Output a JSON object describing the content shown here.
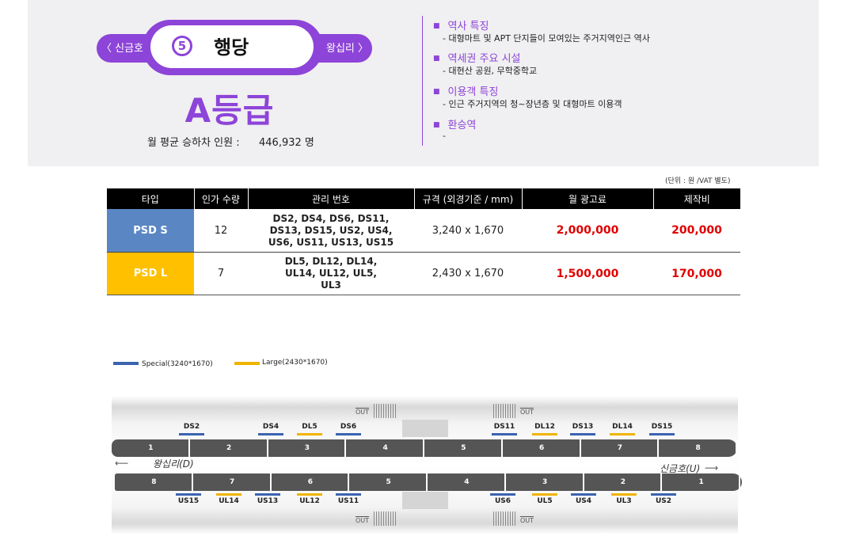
{
  "station": {
    "prev": "〈 신금호",
    "next": "왕십리 〉",
    "number": "5",
    "name": "행당",
    "grade": "A등급",
    "monthly_label": "월 평균 승하차 인원 :",
    "monthly_value": "446,932 명"
  },
  "features": [
    {
      "title": "역사 특징",
      "desc": "-  대형마트 및 APT 단지들이 모여있는 주거지역인근 역사"
    },
    {
      "title": "역세권 주요 시설",
      "desc": "-  대현산 공원, 무학중학교"
    },
    {
      "title": "이용객 특징",
      "desc": "-  인근 주거지역의 청~장년층 및 대형마트 이용객"
    },
    {
      "title": "환승역",
      "desc": "-"
    }
  ],
  "unit_note": "(단위 : 원 /VAT 별도)",
  "table": {
    "headers": [
      "타입",
      "인가 수량",
      "관리 번호",
      "규격 (외경기준 / mm)",
      "월 광고료",
      "제작비"
    ],
    "rows": [
      {
        "type": "PSD S",
        "qty": "12",
        "codes": "DS2, DS4, DS6, DS11, DS13, DS15, US2, US4, US6, US11, US13, US15",
        "size": "3,240 x 1,670",
        "monthly": "2,000,000",
        "production": "200,000"
      },
      {
        "type": "PSD L",
        "qty": "7",
        "codes": "DL5, DL12, DL14, UL14, UL12, UL5, UL3",
        "size": "2,430 x 1,670",
        "monthly": "1,500,000",
        "production": "170,000"
      }
    ]
  },
  "legend": {
    "special": "Special(3240*1670)",
    "large": "Large(2430*1670)"
  },
  "colors": {
    "special": "#3b63b0",
    "large": "#f0b400",
    "purple": "#8d44d8"
  },
  "diagram": {
    "top_labels": [
      "DS2",
      "DS4",
      "DL5",
      "DS6",
      "DS11",
      "DL12",
      "DS13",
      "DL14",
      "DS15"
    ],
    "bottom_labels": [
      "US15",
      "UL14",
      "US13",
      "UL12",
      "US11",
      "US6",
      "UL5",
      "US4",
      "UL3",
      "US2"
    ],
    "top_cars": [
      "1",
      "2",
      "3",
      "4",
      "5",
      "6",
      "7",
      "8"
    ],
    "bottom_cars": [
      "8",
      "7",
      "6",
      "5",
      "4",
      "3",
      "2",
      "1"
    ],
    "dir_left": "왕십리(D)",
    "dir_right": "신금호(U)",
    "out_label": "OUT"
  }
}
